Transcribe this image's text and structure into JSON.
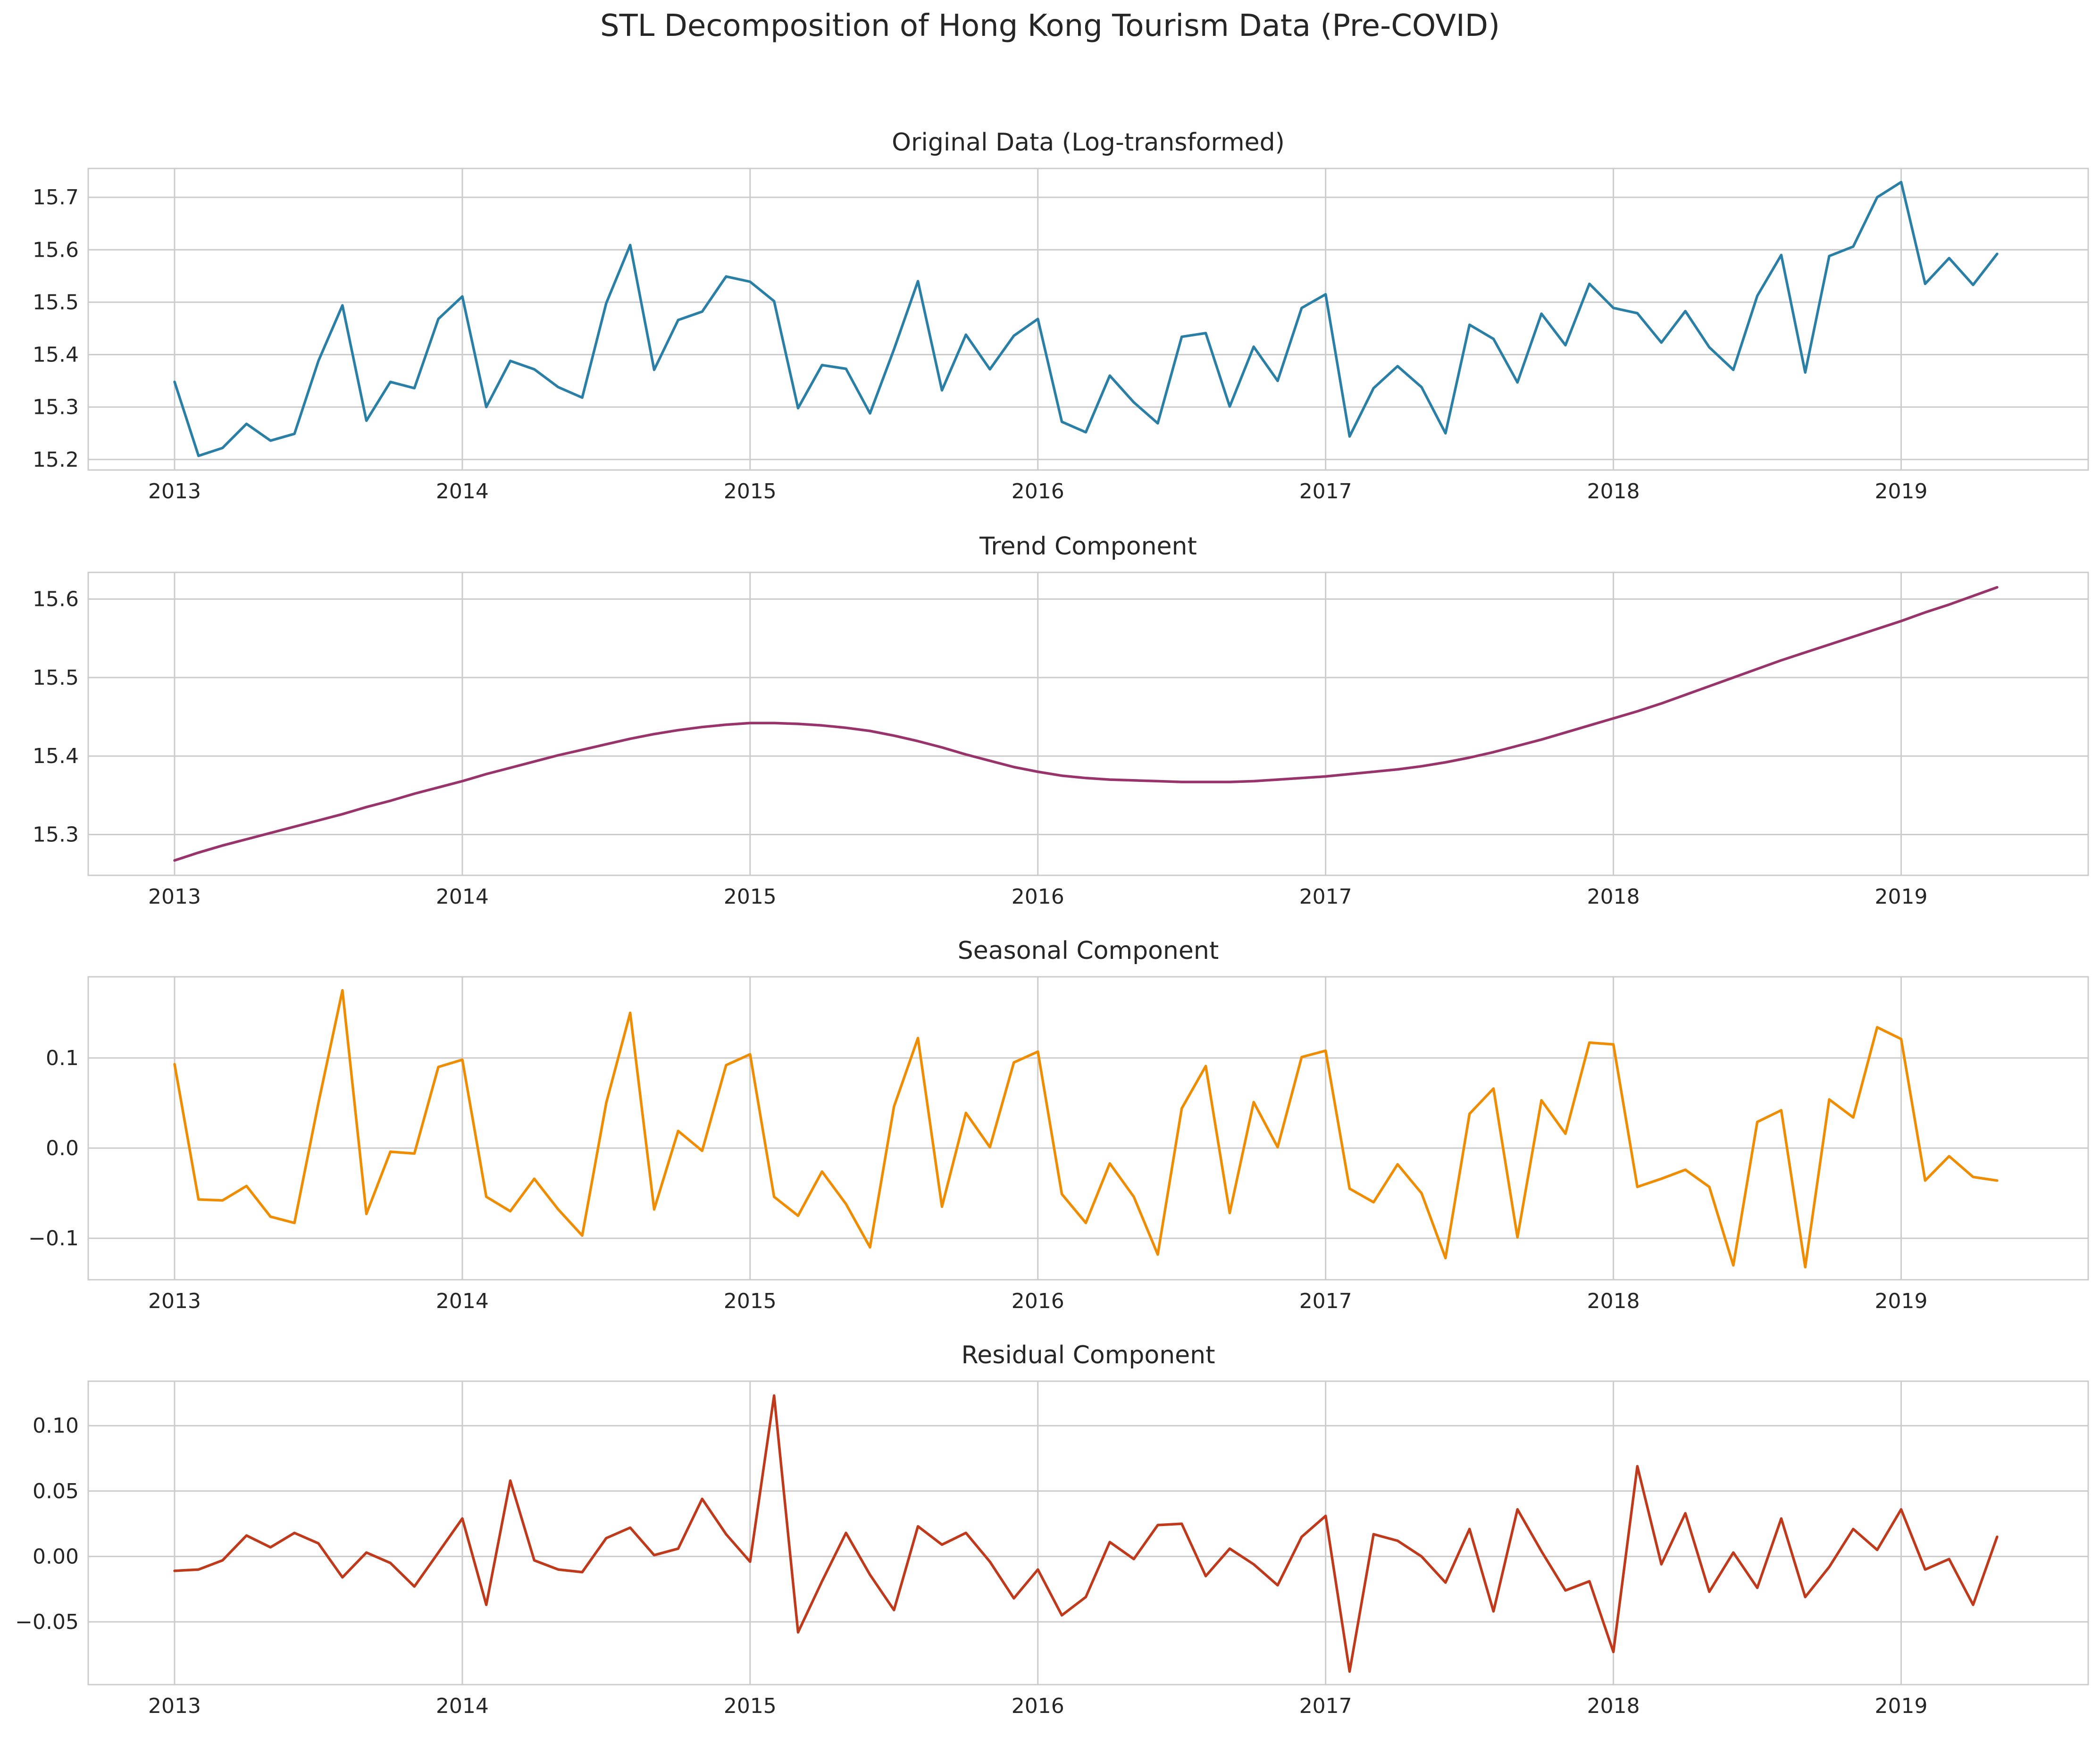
{
  "figure": {
    "title": "STL Decomposition of Hong Kong Tourism Data (Pre-COVID)"
  },
  "chart_data": [
    {
      "type": "line",
      "title": "Original Data (Log-transformed)",
      "xlabel": "",
      "ylabel": "",
      "color": "#2a7fa6",
      "x_ticks": [
        "2013",
        "2014",
        "2015",
        "2016",
        "2017",
        "2018",
        "2019"
      ],
      "y_ticks": [
        15.2,
        15.3,
        15.4,
        15.5,
        15.6,
        15.7
      ],
      "y_tick_labels": [
        "15.2",
        "15.3",
        "15.4",
        "15.5",
        "15.6",
        "15.7"
      ],
      "xlim": [
        2012.7,
        2019.65
      ],
      "ylim": [
        15.18,
        15.755
      ],
      "grid": true,
      "x_start": "2013-01",
      "x_step": "1 month",
      "values": [
        15.348,
        15.207,
        15.222,
        15.268,
        15.236,
        15.249,
        15.388,
        15.494,
        15.274,
        15.348,
        15.336,
        15.468,
        15.511,
        15.3,
        15.388,
        15.372,
        15.338,
        15.318,
        15.498,
        15.609,
        15.371,
        15.466,
        15.482,
        15.549,
        15.539,
        15.502,
        15.298,
        15.38,
        15.373,
        15.288,
        15.41,
        15.54,
        15.332,
        15.438,
        15.372,
        15.436,
        15.468,
        15.272,
        15.252,
        15.36,
        15.309,
        15.269,
        15.434,
        15.441,
        15.301,
        15.415,
        15.35,
        15.489,
        15.515,
        15.244,
        15.336,
        15.378,
        15.338,
        15.25,
        15.457,
        15.43,
        15.347,
        15.478,
        15.418,
        15.535,
        15.489,
        15.479,
        15.423,
        15.483,
        15.414,
        15.371,
        15.512,
        15.59,
        15.366,
        15.588,
        15.606,
        15.7,
        15.729,
        15.535,
        15.584,
        15.533,
        15.592
      ]
    },
    {
      "type": "line",
      "title": "Trend Component",
      "xlabel": "",
      "ylabel": "",
      "color": "#99336b",
      "x_ticks": [
        "2013",
        "2014",
        "2015",
        "2016",
        "2017",
        "2018",
        "2019"
      ],
      "y_ticks": [
        15.3,
        15.4,
        15.5,
        15.6
      ],
      "y_tick_labels": [
        "15.3",
        "15.4",
        "15.5",
        "15.6"
      ],
      "xlim": [
        2012.7,
        2019.65
      ],
      "ylim": [
        15.248,
        15.634
      ],
      "grid": true,
      "x_start": "2013-01",
      "x_step": "1 month",
      "values": [
        15.267,
        15.277,
        15.286,
        15.294,
        15.302,
        15.31,
        15.318,
        15.326,
        15.335,
        15.343,
        15.352,
        15.36,
        15.368,
        15.377,
        15.385,
        15.393,
        15.401,
        15.408,
        15.415,
        15.422,
        15.428,
        15.433,
        15.437,
        15.44,
        15.442,
        15.442,
        15.441,
        15.439,
        15.436,
        15.432,
        15.426,
        15.419,
        15.411,
        15.402,
        15.394,
        15.386,
        15.38,
        15.375,
        15.372,
        15.37,
        15.369,
        15.368,
        15.367,
        15.367,
        15.367,
        15.368,
        15.37,
        15.372,
        15.374,
        15.377,
        15.38,
        15.383,
        15.387,
        15.392,
        15.398,
        15.405,
        15.413,
        15.421,
        15.43,
        15.439,
        15.448,
        15.457,
        15.467,
        15.478,
        15.489,
        15.5,
        15.511,
        15.522,
        15.532,
        15.542,
        15.552,
        15.562,
        15.572,
        15.583,
        15.593,
        15.604,
        15.615
      ]
    },
    {
      "type": "line",
      "title": "Seasonal Component",
      "xlabel": "",
      "ylabel": "",
      "color": "#f08c00",
      "x_ticks": [
        "2013",
        "2014",
        "2015",
        "2016",
        "2017",
        "2018",
        "2019"
      ],
      "y_ticks": [
        -0.1,
        0.0,
        0.1
      ],
      "y_tick_labels": [
        "−0.1",
        "0.0",
        "0.1"
      ],
      "xlim": [
        2012.7,
        2019.65
      ],
      "ylim": [
        -0.146,
        0.19
      ],
      "grid": true,
      "x_start": "2013-01",
      "x_step": "1 month",
      "values": [
        0.093,
        -0.057,
        -0.058,
        -0.042,
        -0.076,
        -0.083,
        0.05,
        0.175,
        -0.073,
        -0.004,
        -0.006,
        0.09,
        0.098,
        -0.054,
        -0.07,
        -0.034,
        -0.068,
        -0.097,
        0.05,
        0.15,
        -0.068,
        0.019,
        -0.003,
        0.092,
        0.104,
        -0.054,
        -0.075,
        -0.026,
        -0.062,
        -0.11,
        0.046,
        0.122,
        -0.065,
        0.039,
        0.001,
        0.095,
        0.107,
        -0.051,
        -0.083,
        -0.017,
        -0.054,
        -0.118,
        0.044,
        0.091,
        -0.072,
        0.051,
        0.001,
        0.101,
        0.108,
        -0.045,
        -0.06,
        -0.018,
        -0.05,
        -0.122,
        0.038,
        0.066,
        -0.099,
        0.053,
        0.016,
        0.117,
        0.115,
        -0.043,
        -0.034,
        -0.024,
        -0.043,
        -0.13,
        0.029,
        0.042,
        -0.132,
        0.054,
        0.034,
        0.134,
        0.121,
        -0.036,
        -0.009,
        -0.032,
        -0.036
      ]
    },
    {
      "type": "line",
      "title": "Residual Component",
      "xlabel": "",
      "ylabel": "",
      "color": "#c0391b",
      "x_ticks": [
        "2013",
        "2014",
        "2015",
        "2016",
        "2017",
        "2018",
        "2019"
      ],
      "y_ticks": [
        -0.05,
        0.0,
        0.05,
        0.1
      ],
      "y_tick_labels": [
        "−0.05",
        "0.00",
        "0.05",
        "0.10"
      ],
      "xlim": [
        2012.7,
        2019.65
      ],
      "ylim": [
        -0.098,
        0.134
      ],
      "grid": true,
      "x_start": "2013-01",
      "x_step": "1 month",
      "values": [
        -0.011,
        -0.01,
        -0.003,
        0.016,
        0.007,
        0.018,
        0.01,
        -0.016,
        0.003,
        -0.005,
        -0.023,
        0.003,
        0.029,
        -0.037,
        0.058,
        -0.003,
        -0.01,
        -0.012,
        0.014,
        0.022,
        0.001,
        0.006,
        0.044,
        0.017,
        -0.004,
        0.123,
        -0.058,
        -0.019,
        0.018,
        -0.014,
        -0.041,
        0.023,
        0.009,
        0.018,
        -0.004,
        -0.032,
        -0.01,
        -0.045,
        -0.031,
        0.011,
        -0.002,
        0.024,
        0.025,
        -0.015,
        0.006,
        -0.006,
        -0.022,
        0.015,
        0.031,
        -0.088,
        0.017,
        0.012,
        0.0,
        -0.02,
        0.021,
        -0.042,
        0.036,
        0.004,
        -0.026,
        -0.019,
        -0.073,
        0.069,
        -0.006,
        0.033,
        -0.027,
        0.003,
        -0.024,
        0.029,
        -0.031,
        -0.008,
        0.021,
        0.005,
        0.036,
        -0.01,
        -0.002,
        -0.037,
        0.015
      ]
    }
  ]
}
